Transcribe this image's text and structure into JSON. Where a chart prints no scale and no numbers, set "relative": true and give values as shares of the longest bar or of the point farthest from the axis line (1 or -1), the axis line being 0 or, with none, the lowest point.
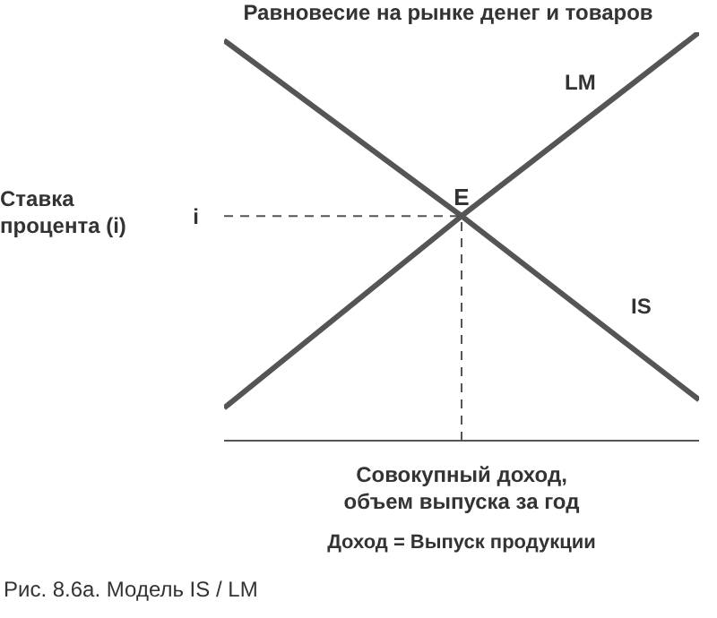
{
  "chart_data": {
    "type": "line",
    "title": "Равновесие на рынке денег и товаров",
    "xlabel": "Совокупный доход,\nобъем выпуска за год",
    "ylabel": "Ставка\nпроцента (i)",
    "relative": true,
    "categories": [
      null,
      null,
      null
    ],
    "series": [
      {
        "name": "LM",
        "color": "#555555",
        "values": [
          0.08,
          0.55,
          1.0
        ]
      },
      {
        "name": "IS",
        "color": "#555555",
        "values": [
          0.98,
          0.55,
          0.1
        ]
      }
    ],
    "ref_lines": [
      {
        "axis": "y",
        "value": 0.55,
        "label": "i",
        "color": "#555555",
        "line_style": "dashed"
      }
    ],
    "annotations": [
      "E",
      "Доход = Выпуск продукции",
      "Рис. 8.6а. Модель IS / LM"
    ],
    "legend": false,
    "grid": false,
    "marker": "none",
    "line_style": "solid"
  }
}
